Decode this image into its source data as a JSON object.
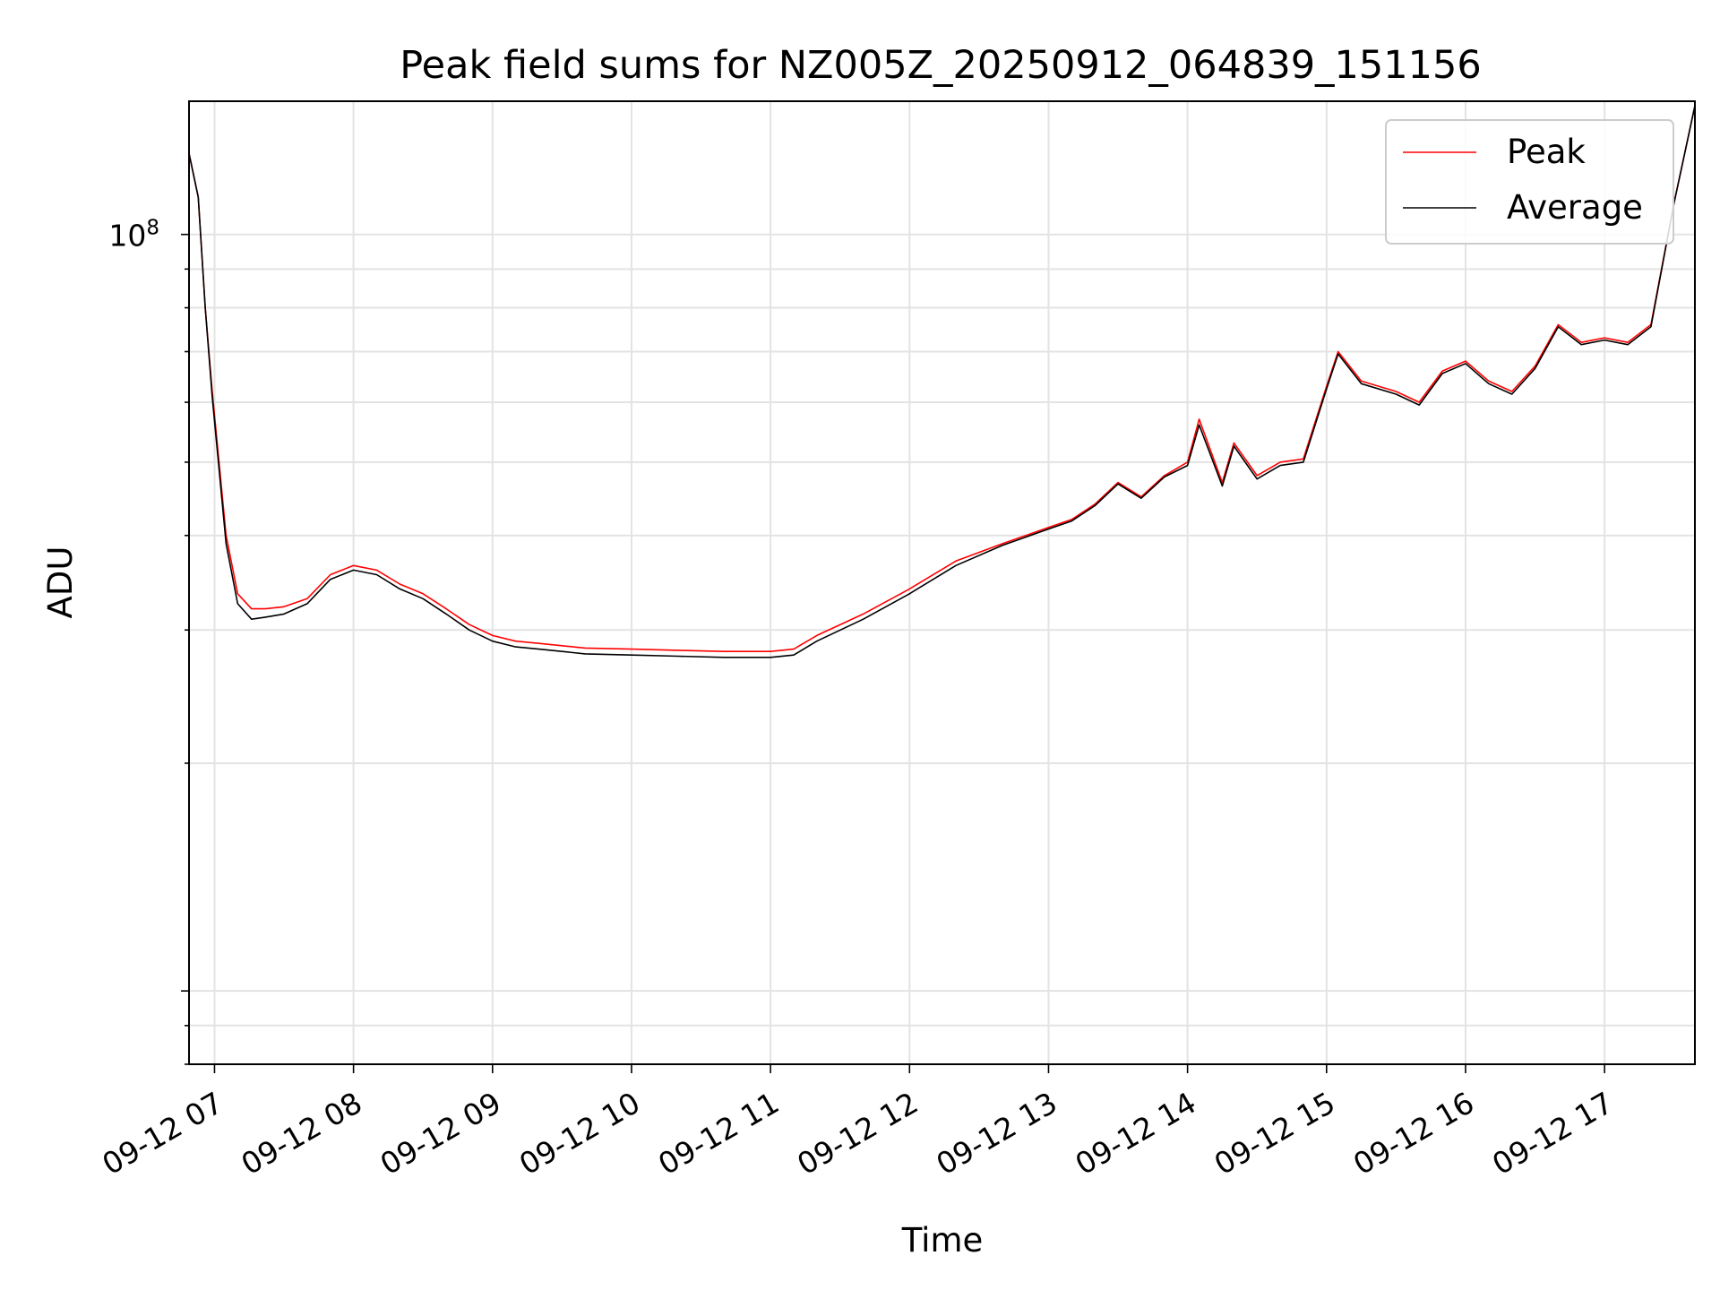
{
  "chart_data": {
    "type": "line",
    "title": "Peak field sums for NZ005Z_20250912_064839_151156",
    "xlabel": "Time",
    "ylabel": "ADU",
    "yscale": "log",
    "ylim": [
      8000000,
      150000000
    ],
    "xlim": [
      "09-12 06:49",
      "09-12 17:39"
    ],
    "grid": true,
    "legend_position": "top-right",
    "x_ticks": [
      "09-12 07",
      "09-12 08",
      "09-12 09",
      "09-12 10",
      "09-12 11",
      "09-12 12",
      "09-12 13",
      "09-12 14",
      "09-12 15",
      "09-12 16",
      "09-12 17"
    ],
    "y_ticks": [
      {
        "value": 100000000,
        "base": "10",
        "exp": "8"
      }
    ],
    "series": [
      {
        "name": "Peak",
        "color": "#ff0000",
        "x": [
          "09-12 06:49",
          "09-12 06:53",
          "09-12 06:56",
          "09-12 06:59",
          "09-12 07:05",
          "09-12 07:10",
          "09-12 07:16",
          "09-12 07:22",
          "09-12 07:30",
          "09-12 07:40",
          "09-12 07:50",
          "09-12 08:00",
          "09-12 08:10",
          "09-12 08:20",
          "09-12 08:30",
          "09-12 08:40",
          "09-12 08:50",
          "09-12 09:00",
          "09-12 09:10",
          "09-12 09:20",
          "09-12 09:30",
          "09-12 09:40",
          "09-12 10:00",
          "09-12 10:20",
          "09-12 10:40",
          "09-12 11:00",
          "09-12 11:10",
          "09-12 11:20",
          "09-12 11:40",
          "09-12 12:00",
          "09-12 12:20",
          "09-12 12:40",
          "09-12 13:00",
          "09-12 13:10",
          "09-12 13:20",
          "09-12 13:30",
          "09-12 13:40",
          "09-12 13:50",
          "09-12 14:00",
          "09-12 14:05",
          "09-12 14:15",
          "09-12 14:20",
          "09-12 14:30",
          "09-12 14:40",
          "09-12 14:50",
          "09-12 15:00",
          "09-12 15:05",
          "09-12 15:15",
          "09-12 15:30",
          "09-12 15:40",
          "09-12 15:50",
          "09-12 16:00",
          "09-12 16:10",
          "09-12 16:20",
          "09-12 16:30",
          "09-12 16:40",
          "09-12 16:50",
          "09-12 17:00",
          "09-12 17:10",
          "09-12 17:20",
          "09-12 17:30",
          "09-12 17:39"
        ],
        "values": [
          128000000,
          112000000,
          80000000,
          62000000,
          40000000,
          33500000,
          32000000,
          32000000,
          32200000,
          33000000,
          35500000,
          36500000,
          36000000,
          34500000,
          33500000,
          32000000,
          30500000,
          29500000,
          29000000,
          28800000,
          28600000,
          28400000,
          28300000,
          28200000,
          28100000,
          28100000,
          28300000,
          29500000,
          31500000,
          34000000,
          37000000,
          39000000,
          41000000,
          42000000,
          44000000,
          47000000,
          45000000,
          48000000,
          50000000,
          57000000,
          47000000,
          53000000,
          48000000,
          50000000,
          50500000,
          63000000,
          70000000,
          64000000,
          62000000,
          60000000,
          66000000,
          68000000,
          64000000,
          62000000,
          67000000,
          76000000,
          72000000,
          73000000,
          72000000,
          76000000,
          110000000,
          148000000
        ]
      },
      {
        "name": "Average",
        "color": "#000000",
        "x": [
          "09-12 06:49",
          "09-12 06:53",
          "09-12 06:56",
          "09-12 06:59",
          "09-12 07:05",
          "09-12 07:10",
          "09-12 07:16",
          "09-12 07:22",
          "09-12 07:30",
          "09-12 07:40",
          "09-12 07:50",
          "09-12 08:00",
          "09-12 08:10",
          "09-12 08:20",
          "09-12 08:30",
          "09-12 08:40",
          "09-12 08:50",
          "09-12 09:00",
          "09-12 09:10",
          "09-12 09:20",
          "09-12 09:30",
          "09-12 09:40",
          "09-12 10:00",
          "09-12 10:20",
          "09-12 10:40",
          "09-12 11:00",
          "09-12 11:10",
          "09-12 11:20",
          "09-12 11:40",
          "09-12 12:00",
          "09-12 12:20",
          "09-12 12:40",
          "09-12 13:00",
          "09-12 13:10",
          "09-12 13:20",
          "09-12 13:30",
          "09-12 13:40",
          "09-12 13:50",
          "09-12 14:00",
          "09-12 14:05",
          "09-12 14:15",
          "09-12 14:20",
          "09-12 14:30",
          "09-12 14:40",
          "09-12 14:50",
          "09-12 15:00",
          "09-12 15:05",
          "09-12 15:15",
          "09-12 15:30",
          "09-12 15:40",
          "09-12 15:50",
          "09-12 16:00",
          "09-12 16:10",
          "09-12 16:20",
          "09-12 16:30",
          "09-12 16:40",
          "09-12 16:50",
          "09-12 17:00",
          "09-12 17:10",
          "09-12 17:20",
          "09-12 17:30",
          "09-12 17:39"
        ],
        "values": [
          128000000,
          112000000,
          80000000,
          61000000,
          39000000,
          32500000,
          31000000,
          31200000,
          31500000,
          32500000,
          35000000,
          36000000,
          35500000,
          34000000,
          33000000,
          31500000,
          30000000,
          29000000,
          28500000,
          28300000,
          28100000,
          27900000,
          27800000,
          27700000,
          27600000,
          27600000,
          27800000,
          29000000,
          31000000,
          33500000,
          36500000,
          38800000,
          40800000,
          41800000,
          43800000,
          46800000,
          44800000,
          47800000,
          49500000,
          56000000,
          46500000,
          52500000,
          47500000,
          49500000,
          50000000,
          62500000,
          69500000,
          63500000,
          61500000,
          59500000,
          65500000,
          67500000,
          63500000,
          61500000,
          66500000,
          75500000,
          71500000,
          72500000,
          71500000,
          75500000,
          110000000,
          148000000
        ]
      }
    ]
  }
}
